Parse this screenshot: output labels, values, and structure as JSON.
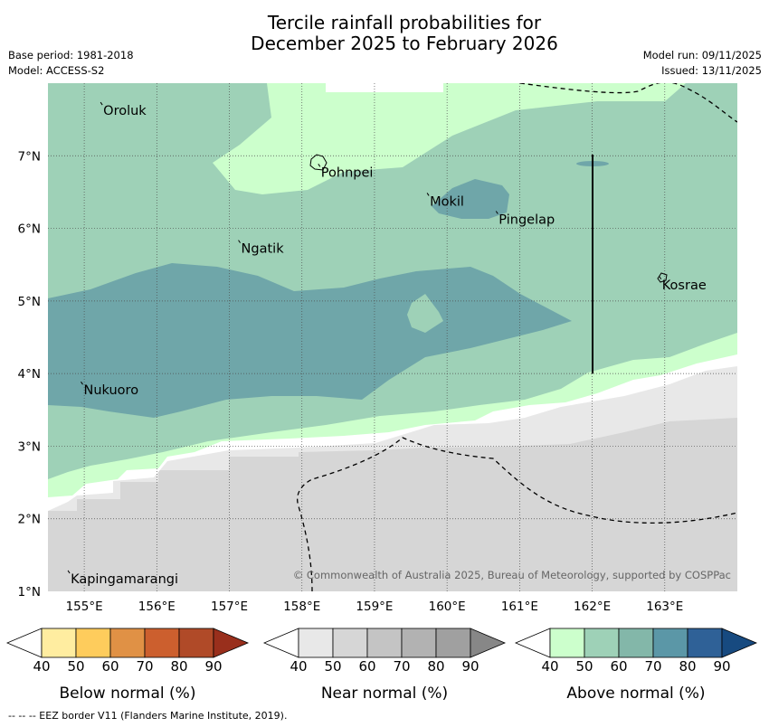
{
  "title": {
    "line1": "Tercile rainfall probabilities for",
    "line2": "December 2025 to February 2026"
  },
  "meta": {
    "base_period": "Base period: 1981-2018",
    "model": "Model: ACCESS-S2",
    "model_run": "Model run: 09/11/2025",
    "issued": "Issued: 13/11/2025"
  },
  "map": {
    "lon_range": [
      154.5,
      164.0
    ],
    "lat_range": [
      1.0,
      8.0
    ],
    "x_ticks": [
      "155°E",
      "156°E",
      "157°E",
      "158°E",
      "159°E",
      "160°E",
      "161°E",
      "162°E",
      "163°E"
    ],
    "y_ticks": [
      "1°N",
      "2°N",
      "3°N",
      "4°N",
      "5°N",
      "6°N",
      "7°N"
    ],
    "places": [
      {
        "name": "Oroluk",
        "lon": 155.25,
        "lat": 7.7
      },
      {
        "name": "Pohnpei",
        "lon": 158.25,
        "lat": 6.85
      },
      {
        "name": "Mokil",
        "lon": 159.75,
        "lat": 6.45
      },
      {
        "name": "Pingelap",
        "lon": 160.7,
        "lat": 6.2
      },
      {
        "name": "Ngatik",
        "lon": 157.15,
        "lat": 5.8
      },
      {
        "name": "Kosrae",
        "lon": 162.95,
        "lat": 5.3
      },
      {
        "name": "Nukuoro",
        "lon": 154.98,
        "lat": 3.85
      },
      {
        "name": "Kapingamarangi",
        "lon": 154.8,
        "lat": 1.25
      }
    ],
    "copyright": "© Commonwealth of Australia 2025, Bureau of Meteorology, supported by COSPPac"
  },
  "colorbars": [
    {
      "label": "Below normal (%)",
      "ticks": [
        "40",
        "50",
        "60",
        "70",
        "80",
        "90"
      ],
      "colors": [
        "#ffffff",
        "#ffeda0",
        "#fecc5c",
        "#e09145",
        "#cc5f2e",
        "#b04a28",
        "#992f1c"
      ]
    },
    {
      "label": "Near normal (%)",
      "ticks": [
        "40",
        "50",
        "60",
        "70",
        "80",
        "90"
      ],
      "colors": [
        "#ffffff",
        "#e8e8e8",
        "#d6d6d6",
        "#c4c4c4",
        "#b2b2b2",
        "#a0a0a0",
        "#878787"
      ]
    },
    {
      "label": "Above normal (%)",
      "ticks": [
        "40",
        "50",
        "60",
        "70",
        "80",
        "90"
      ],
      "colors": [
        "#ffffff",
        "#ccffcc",
        "#9ed1b7",
        "#83b7a9",
        "#5b97a7",
        "#2f6197",
        "#174a80"
      ]
    }
  ],
  "footer": "--  --  -- EEZ border V11 (Flanders Marine Institute, 2019)."
}
